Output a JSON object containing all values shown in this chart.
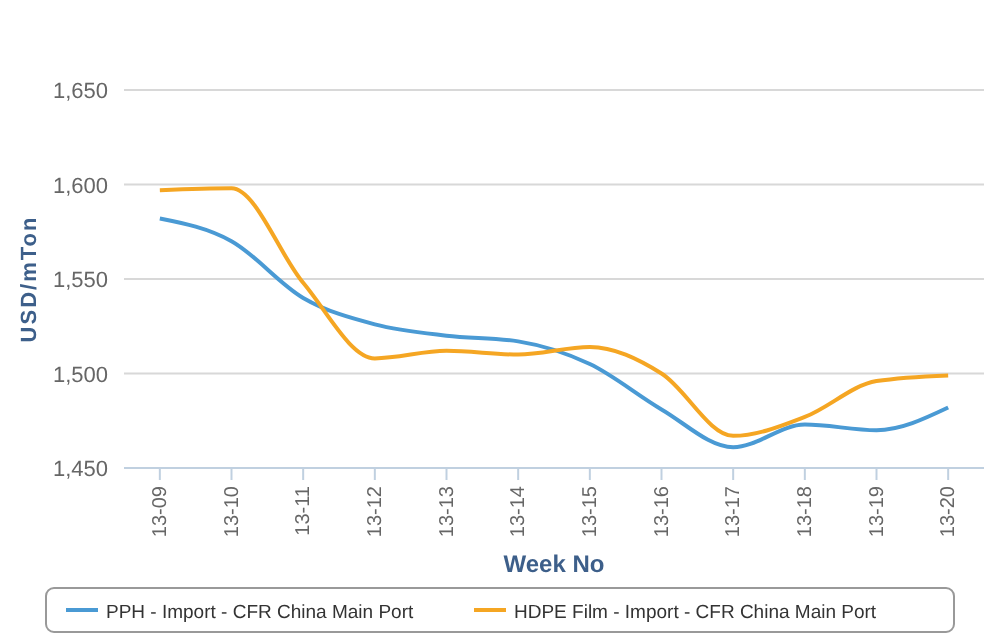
{
  "chart_data": {
    "type": "line",
    "xlabel": "Week No",
    "ylabel": "USD/mTon",
    "categories": [
      "13-09",
      "13-10",
      "13-11",
      "13-12",
      "13-13",
      "13-14",
      "13-15",
      "13-16",
      "13-17",
      "13-18",
      "13-19",
      "13-20"
    ],
    "series": [
      {
        "name": "PPH - Import - CFR China Main Port",
        "color": "#4a9ad4",
        "values": [
          1582,
          1570,
          1540,
          1526,
          1520,
          1517,
          1505,
          1481,
          1461,
          1473,
          1470,
          1482
        ]
      },
      {
        "name": "HDPE Film - Import - CFR China Main Port",
        "color": "#f5a623",
        "values": [
          1597,
          1598,
          1548,
          1508,
          1512,
          1510,
          1514,
          1500,
          1467,
          1477,
          1496,
          1499
        ]
      }
    ],
    "ylim": [
      1450,
      1650
    ],
    "yticks": [
      {
        "value": 1450,
        "label": "1,450"
      },
      {
        "value": 1500,
        "label": "1,500"
      },
      {
        "value": 1550,
        "label": "1,550"
      },
      {
        "value": 1600,
        "label": "1,600"
      },
      {
        "value": 1650,
        "label": "1,650"
      }
    ],
    "grid": "y",
    "legend": "bottom",
    "marker": "none",
    "line_style": "solid"
  }
}
